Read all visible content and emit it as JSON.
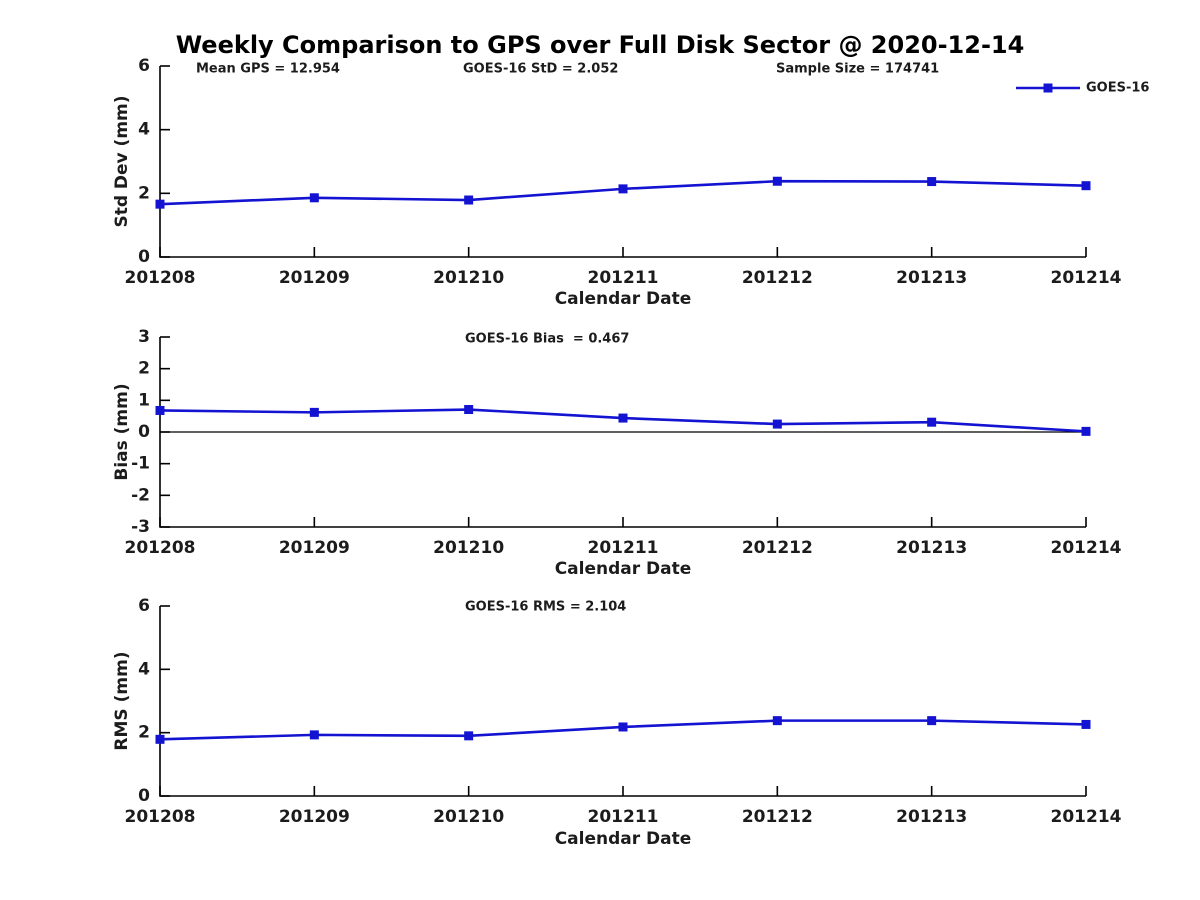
{
  "figure": {
    "title": "Weekly Comparison to GPS over Full Disk Sector @ 2020-12-14"
  },
  "colors": {
    "line": "#1313d1",
    "axis": "#000000",
    "text": "#1c1c1c",
    "background": "#ffffff"
  },
  "legend": {
    "label": "GOES-16"
  },
  "chart_data": [
    {
      "type": "line",
      "name": "std-dev",
      "categories": [
        "201208",
        "201209",
        "201210",
        "201211",
        "201212",
        "201213",
        "201214"
      ],
      "series": [
        {
          "name": "GOES-16",
          "values": [
            1.66,
            1.86,
            1.79,
            2.14,
            2.38,
            2.37,
            2.24
          ]
        }
      ],
      "ylabel": "Std Dev (mm)",
      "xlabel": "Calendar Date",
      "ylim": [
        0,
        6
      ],
      "yticks": [
        0,
        2,
        4,
        6
      ],
      "grid": false,
      "marker": "square",
      "zero_line": false,
      "legend": {
        "visible": true,
        "position": "top-right",
        "entries": [
          "GOES-16"
        ]
      },
      "annotations": [
        "Mean GPS = 12.954",
        "GOES-16 StD = 2.052",
        "Sample Size = 174741"
      ]
    },
    {
      "type": "line",
      "name": "bias",
      "categories": [
        "201208",
        "201209",
        "201210",
        "201211",
        "201212",
        "201213",
        "201214"
      ],
      "series": [
        {
          "name": "GOES-16",
          "values": [
            0.68,
            0.62,
            0.71,
            0.44,
            0.25,
            0.31,
            0.02
          ]
        }
      ],
      "ylabel": "Bias (mm)",
      "xlabel": "Calendar Date",
      "ylim": [
        -3,
        3
      ],
      "yticks": [
        -3,
        -2,
        -1,
        0,
        1,
        2,
        3
      ],
      "grid": false,
      "marker": "square",
      "zero_line": true,
      "legend": {
        "visible": false
      },
      "annotations": [
        "GOES-16 Bias  = 0.467"
      ]
    },
    {
      "type": "line",
      "name": "rms",
      "categories": [
        "201208",
        "201209",
        "201210",
        "201211",
        "201212",
        "201213",
        "201214"
      ],
      "series": [
        {
          "name": "GOES-16",
          "values": [
            1.79,
            1.93,
            1.9,
            2.18,
            2.38,
            2.38,
            2.26
          ]
        }
      ],
      "ylabel": "RMS (mm)",
      "xlabel": "Calendar Date",
      "ylim": [
        0,
        6
      ],
      "yticks": [
        0,
        2,
        4,
        6
      ],
      "grid": false,
      "marker": "square",
      "zero_line": false,
      "legend": {
        "visible": false
      },
      "annotations": [
        "GOES-16 RMS = 2.104"
      ]
    }
  ]
}
